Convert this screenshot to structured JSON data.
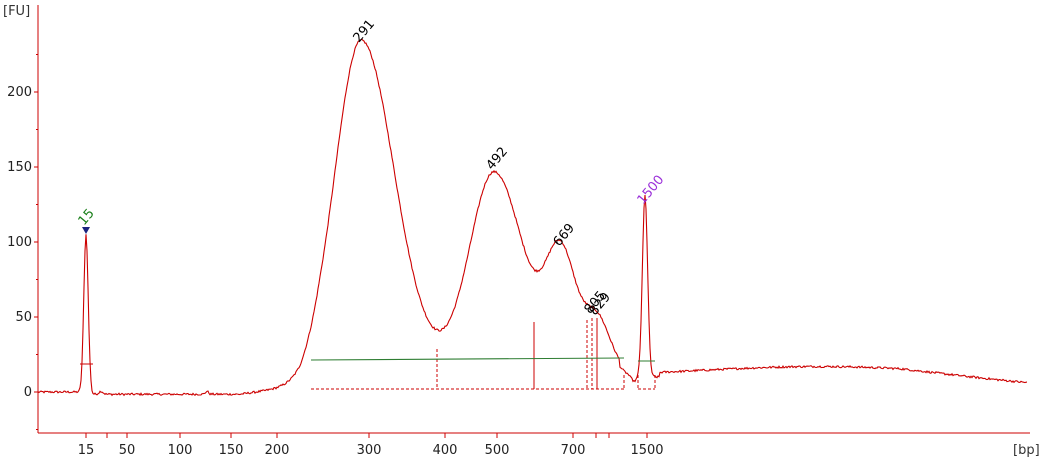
{
  "chart_data": {
    "type": "line",
    "y_unit": "[FU]",
    "x_unit": "[bp]",
    "ylim": [
      -28,
      253
    ],
    "y_ticks": [
      0,
      50,
      100,
      150,
      200
    ],
    "x_ticks": [
      "15",
      "50",
      "100",
      "150",
      "200",
      "300",
      "400",
      "500",
      "700",
      "1500"
    ],
    "colors": {
      "trace": "#cc0000",
      "baseline": "#2e7d32",
      "axis": "#cc0000",
      "marker_lower": "#1a7f1a",
      "marker_upper": "#9b30d9",
      "peak_label": "#000000"
    },
    "peaks": [
      {
        "label": "15",
        "kind": "lower-marker",
        "height": 108
      },
      {
        "label": "291",
        "kind": "peak",
        "height": 230
      },
      {
        "label": "492",
        "kind": "peak",
        "height": 145
      },
      {
        "label": "669",
        "kind": "peak",
        "height": 94
      },
      {
        "label": "805",
        "kind": "peak",
        "height": 49
      },
      {
        "label": "829",
        "kind": "peak",
        "height": 48
      },
      {
        "label": "1500",
        "kind": "upper-marker",
        "height": 122
      }
    ]
  }
}
